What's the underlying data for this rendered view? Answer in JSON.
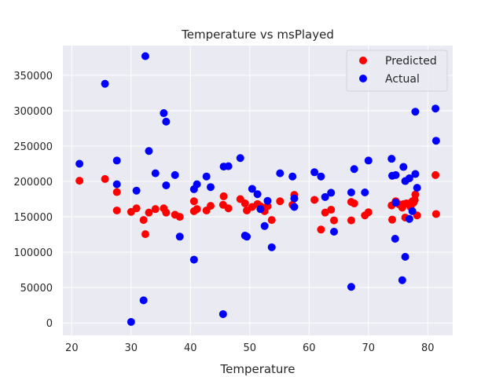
{
  "chart_data": {
    "type": "scatter",
    "title": "Temperature vs msPlayed",
    "xlabel": "Temperature",
    "ylabel": "",
    "xlim": [
      18.5,
      84.2
    ],
    "ylim": [
      -17500,
      392000
    ],
    "xticks": [
      20,
      30,
      40,
      50,
      60,
      70,
      80
    ],
    "yticks": [
      0,
      50000,
      100000,
      150000,
      200000,
      250000,
      300000,
      350000
    ],
    "ytick_labels": [
      "0",
      "50000",
      "100000",
      "150000",
      "200000",
      "250000",
      "300000",
      "350000"
    ],
    "grid": true,
    "legend_position": "top-right",
    "series": [
      {
        "name": "Predicted",
        "color": "#ff0000",
        "points": [
          [
            21.3,
            201000
          ],
          [
            25.6,
            203500
          ],
          [
            27.6,
            185000
          ],
          [
            27.6,
            159000
          ],
          [
            30.0,
            157000
          ],
          [
            30.9,
            162000
          ],
          [
            32.1,
            145500
          ],
          [
            32.4,
            125500
          ],
          [
            33.0,
            156000
          ],
          [
            34.1,
            161000
          ],
          [
            35.5,
            162000
          ],
          [
            35.9,
            156000
          ],
          [
            37.4,
            153000
          ],
          [
            38.2,
            150000
          ],
          [
            40.6,
            172000
          ],
          [
            40.6,
            158000
          ],
          [
            41.1,
            161000
          ],
          [
            42.7,
            159000
          ],
          [
            43.4,
            165500
          ],
          [
            45.5,
            167000
          ],
          [
            45.6,
            179000
          ],
          [
            46.4,
            162000
          ],
          [
            48.4,
            175000
          ],
          [
            49.2,
            169000
          ],
          [
            49.5,
            159000
          ],
          [
            50.4,
            164000
          ],
          [
            51.3,
            168000
          ],
          [
            51.8,
            165000
          ],
          [
            52.5,
            158000
          ],
          [
            53.0,
            165000
          ],
          [
            53.7,
            145500
          ],
          [
            55.1,
            172000
          ],
          [
            57.2,
            167000
          ],
          [
            57.5,
            181000
          ],
          [
            60.9,
            174000
          ],
          [
            62.0,
            132000
          ],
          [
            62.7,
            156000
          ],
          [
            63.7,
            160000
          ],
          [
            64.2,
            145000
          ],
          [
            67.1,
            171000
          ],
          [
            67.1,
            145000
          ],
          [
            67.6,
            169000
          ],
          [
            69.4,
            152000
          ],
          [
            70.0,
            156500
          ],
          [
            73.9,
            166000
          ],
          [
            74.0,
            146000
          ],
          [
            74.5,
            170000
          ],
          [
            74.6,
            172000
          ],
          [
            75.2,
            167500
          ],
          [
            75.7,
            163000
          ],
          [
            75.9,
            168000
          ],
          [
            76.2,
            149000
          ],
          [
            76.4,
            169000
          ],
          [
            76.9,
            167500
          ],
          [
            77.1,
            164000
          ],
          [
            77.4,
            172000
          ],
          [
            77.6,
            170000
          ],
          [
            77.8,
            174000
          ],
          [
            77.9,
            181500
          ],
          [
            78.2,
            152000
          ],
          [
            81.3,
            209000
          ],
          [
            81.4,
            154000
          ]
        ]
      },
      {
        "name": "Actual",
        "color": "#0000ff",
        "points": [
          [
            21.3,
            225000
          ],
          [
            25.6,
            338000
          ],
          [
            27.6,
            229500
          ],
          [
            27.6,
            196000
          ],
          [
            30.0,
            1500
          ],
          [
            30.9,
            187000
          ],
          [
            32.1,
            32000
          ],
          [
            32.4,
            377000
          ],
          [
            33.0,
            243000
          ],
          [
            34.1,
            211500
          ],
          [
            35.5,
            296500
          ],
          [
            35.9,
            284500
          ],
          [
            35.9,
            194500
          ],
          [
            37.4,
            209000
          ],
          [
            38.2,
            122000
          ],
          [
            40.6,
            189000
          ],
          [
            40.6,
            89500
          ],
          [
            41.1,
            196000
          ],
          [
            42.7,
            207000
          ],
          [
            43.4,
            192000
          ],
          [
            45.5,
            12500
          ],
          [
            45.6,
            221000
          ],
          [
            46.4,
            221500
          ],
          [
            48.4,
            233000
          ],
          [
            49.2,
            123500
          ],
          [
            49.5,
            122000
          ],
          [
            50.4,
            189500
          ],
          [
            51.3,
            182000
          ],
          [
            51.8,
            161000
          ],
          [
            52.5,
            137000
          ],
          [
            53.0,
            172500
          ],
          [
            53.7,
            107000
          ],
          [
            55.1,
            211500
          ],
          [
            57.2,
            207000
          ],
          [
            57.5,
            176000
          ],
          [
            57.5,
            164000
          ],
          [
            60.9,
            213000
          ],
          [
            62.0,
            207000
          ],
          [
            62.7,
            178000
          ],
          [
            63.7,
            184000
          ],
          [
            64.2,
            129000
          ],
          [
            67.1,
            184500
          ],
          [
            67.1,
            51000
          ],
          [
            67.6,
            217500
          ],
          [
            69.4,
            184500
          ],
          [
            70.0,
            229500
          ],
          [
            73.9,
            232000
          ],
          [
            74.0,
            208000
          ],
          [
            74.5,
            119000
          ],
          [
            74.6,
            209000
          ],
          [
            74.6,
            170000
          ],
          [
            75.7,
            60500
          ],
          [
            75.9,
            220500
          ],
          [
            76.2,
            200500
          ],
          [
            76.2,
            93500
          ],
          [
            76.9,
            204500
          ],
          [
            76.9,
            147000
          ],
          [
            77.4,
            158000
          ],
          [
            77.9,
            210500
          ],
          [
            78.2,
            191000
          ],
          [
            77.9,
            298500
          ],
          [
            81.3,
            303000
          ],
          [
            81.4,
            257500
          ]
        ]
      }
    ]
  }
}
